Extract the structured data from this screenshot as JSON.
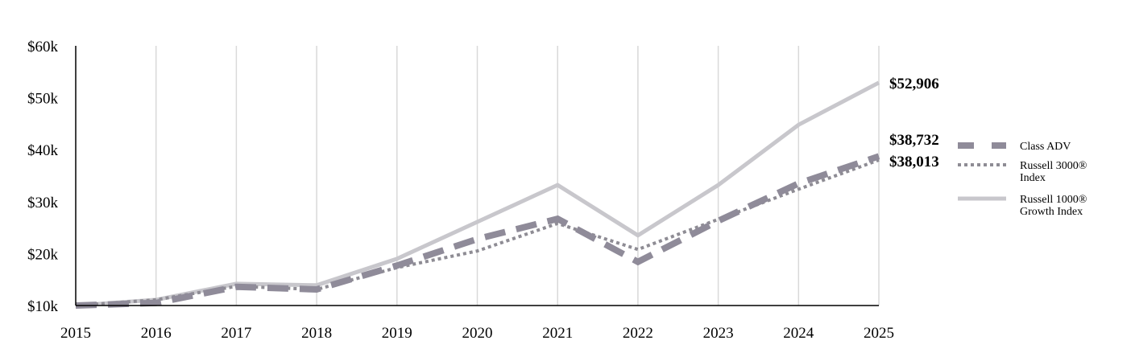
{
  "chart_data": {
    "type": "line",
    "title": "",
    "xlabel": "",
    "ylabel": "",
    "x": [
      2015,
      2016,
      2017,
      2018,
      2019,
      2020,
      2021,
      2022,
      2023,
      2024,
      2025
    ],
    "x_tick_labels": [
      "2015",
      "2016",
      "2017",
      "2018",
      "2019",
      "2020",
      "2021",
      "2022",
      "2023",
      "2024",
      "2025"
    ],
    "ylim": [
      10000,
      60000
    ],
    "y_ticks": [
      10000,
      20000,
      30000,
      40000,
      50000,
      60000
    ],
    "y_tick_labels": [
      "$10k",
      "$20k",
      "$30k",
      "$40k",
      "$50k",
      "$60k"
    ],
    "grid": "vertical",
    "legend_position": "right",
    "series": [
      {
        "name": "Class ADV",
        "style": "dashed",
        "color": "#8f8b99",
        "values": [
          10000,
          10500,
          13600,
          13100,
          17700,
          22800,
          26700,
          18400,
          26300,
          33500,
          38732
        ],
        "end_label": "$38,732"
      },
      {
        "name": "Russell 3000® Index",
        "legend_lines": [
          "Russell 3000®",
          "Index"
        ],
        "style": "dotted",
        "color": "#8e8c94",
        "values": [
          10000,
          11100,
          13700,
          13100,
          17300,
          20500,
          25800,
          20800,
          26600,
          32400,
          38013
        ],
        "end_label": "$38,013"
      },
      {
        "name": "Russell 1000® Growth Index",
        "legend_lines": [
          "Russell 1000®",
          "Growth Index"
        ],
        "style": "solid",
        "color": "#c8c7cc",
        "values": [
          10000,
          11100,
          14200,
          13900,
          19000,
          26100,
          33200,
          23500,
          33200,
          44800,
          52906
        ],
        "end_label": "$52,906"
      }
    ]
  }
}
